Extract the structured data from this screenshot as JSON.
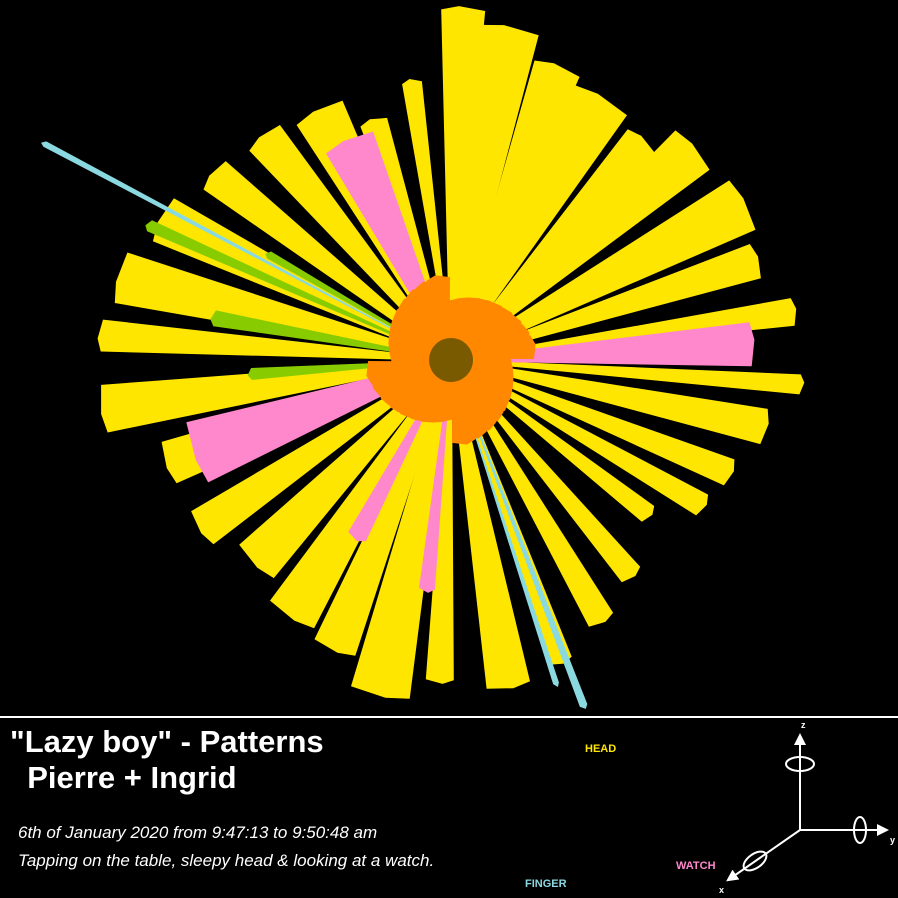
{
  "title": {
    "line1": "\"Lazy boy\" - Patterns",
    "line2": "  Pierre + Ingrid"
  },
  "subtitle": {
    "line1": "6th of January 2020 from 9:47:13 to 9:50:48 am",
    "line2": "Tapping on the table, sleepy head & looking at a watch."
  },
  "legend": {
    "head": "HEAD",
    "watch": "WATCH",
    "finger": "FINGER"
  },
  "axes": {
    "x": "x",
    "y": "y",
    "z": "z"
  },
  "colors": {
    "background": "#000000",
    "head": "#ffe600",
    "watch": "#ff88cc",
    "finger": "#8ad9e0",
    "green": "#88cc00",
    "orange": "#ff8800",
    "center": "#7a5a00",
    "text": "#ffffff"
  }
}
